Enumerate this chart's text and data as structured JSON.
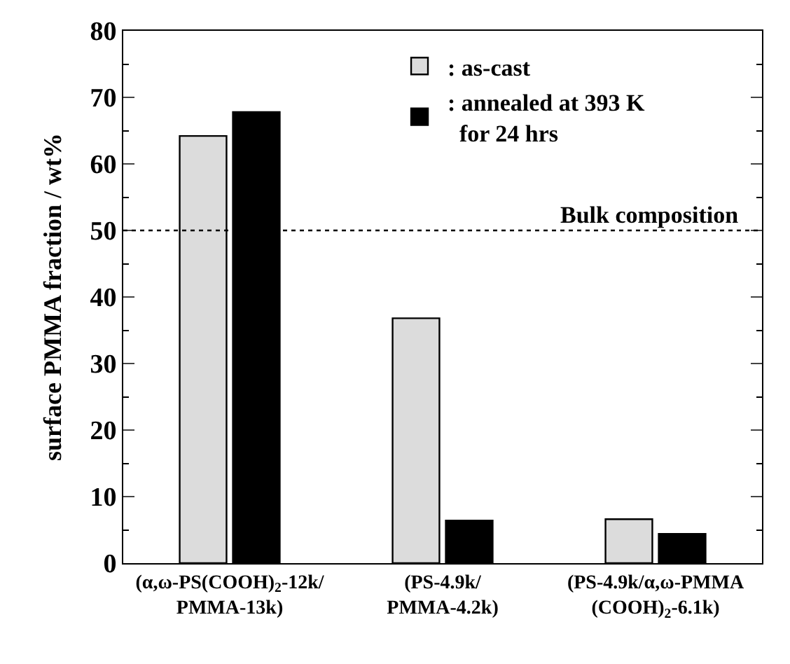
{
  "chart_data": {
    "type": "bar",
    "ylabel": "surface PMMA fraction / wt%",
    "categories": [
      "(α,ω-PS(COOH)$_{2}$-12k/\nPMMA-13k)",
      "(PS-4.9k/\nPMMA-4.2k)",
      "(PS-4.9k/α,ω-PMMA\n(COOH)$_{2}$-6.1k)"
    ],
    "series": [
      {
        "name": ": as-cast",
        "color": "#dcdcdc",
        "values": [
          64.2,
          36.8,
          6.6
        ]
      },
      {
        "name": ": annealed at 393 K\n  for 24 hrs",
        "color": "#000000",
        "values": [
          67.8,
          6.4,
          4.4
        ]
      }
    ],
    "ylim": [
      0,
      80
    ],
    "yticks": [
      0,
      {
        "value": 5,
        "label": null
      },
      10,
      {
        "value": 15,
        "label": null
      },
      20,
      {
        "value": 25,
        "label": null
      },
      30,
      {
        "value": 35,
        "label": null
      },
      40,
      {
        "value": 45,
        "label": null
      },
      50,
      {
        "value": 55,
        "label": null
      },
      60,
      {
        "value": 65,
        "label": null
      },
      70,
      {
        "value": 75,
        "label": null
      },
      80
    ],
    "ref_lines": [
      {
        "axis": "y",
        "value": 50,
        "label": "Bulk composition",
        "color": "#000000",
        "line_style": "dotted"
      }
    ],
    "legend": "top right"
  }
}
